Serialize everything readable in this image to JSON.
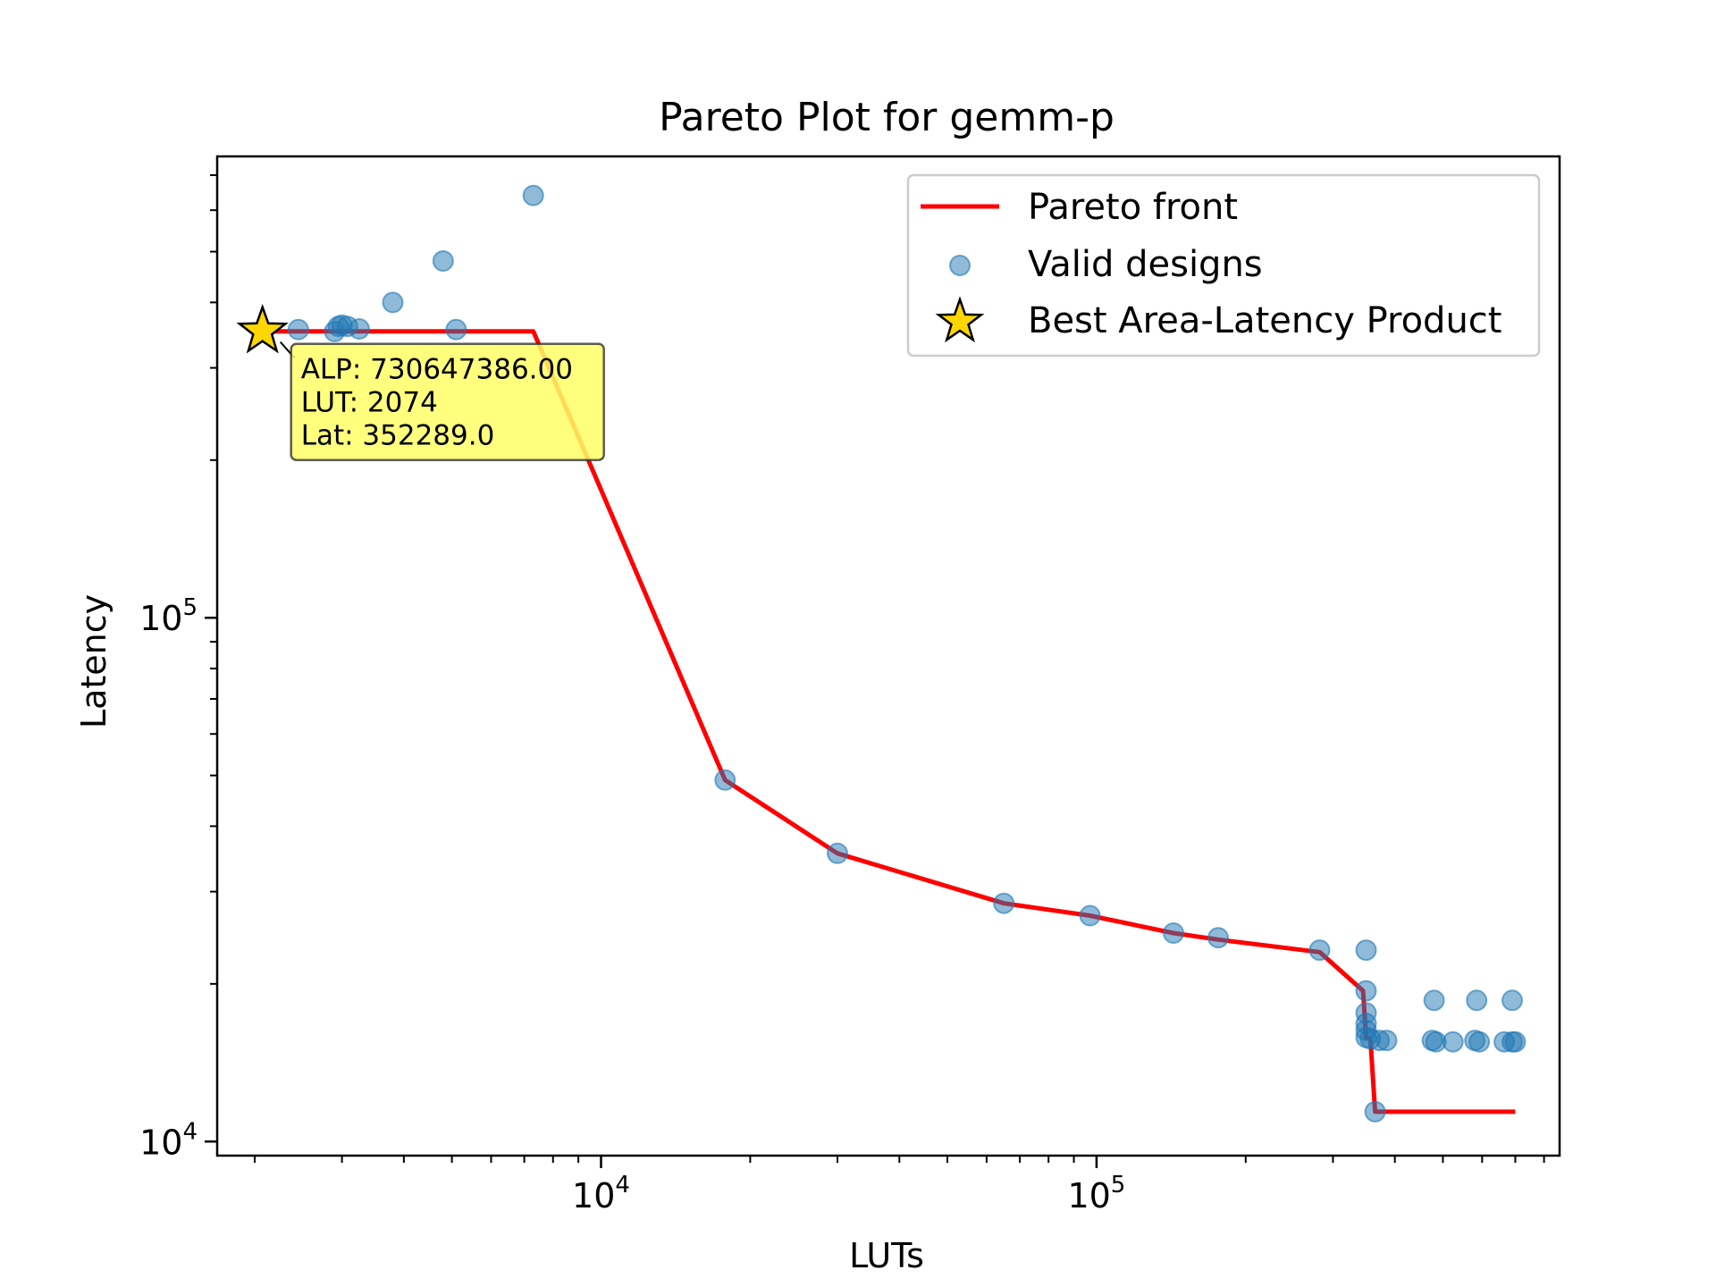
{
  "chart_data": {
    "type": "scatter",
    "title": "Pareto Plot for gemm-p",
    "xlabel": "LUTs",
    "ylabel": "Latency",
    "xscale": "log",
    "yscale": "log",
    "xlim": [
      1680,
      860000
    ],
    "ylim": [
      9400,
      760000
    ],
    "x_ticks": [
      {
        "base": "10",
        "exp": "4",
        "value": 10000
      },
      {
        "base": "10",
        "exp": "5",
        "value": 100000
      }
    ],
    "y_ticks": [
      {
        "base": "10",
        "exp": "4",
        "value": 10000
      },
      {
        "base": "10",
        "exp": "5",
        "value": 100000
      }
    ],
    "grid": false,
    "legend": {
      "placement": "top-right",
      "entries": [
        {
          "label": "Pareto front",
          "kind": "line",
          "color": "#ff0000"
        },
        {
          "label": "Valid designs",
          "kind": "marker",
          "color": "#1f77b4"
        },
        {
          "label": "Best Area-Latency Product",
          "kind": "star",
          "color": "#ffd700"
        }
      ]
    },
    "series": [
      {
        "name": "Valid designs",
        "kind": "scatter",
        "color": "#1f77b4",
        "points": [
          {
            "x": 2074,
            "y": 352289
          },
          {
            "x": 2450,
            "y": 355000
          },
          {
            "x": 2900,
            "y": 352000
          },
          {
            "x": 2950,
            "y": 360000
          },
          {
            "x": 3000,
            "y": 362000
          },
          {
            "x": 3080,
            "y": 360000
          },
          {
            "x": 3250,
            "y": 356000
          },
          {
            "x": 3800,
            "y": 400000
          },
          {
            "x": 4800,
            "y": 480000
          },
          {
            "x": 5100,
            "y": 355000
          },
          {
            "x": 7300,
            "y": 640000
          },
          {
            "x": 17800,
            "y": 49000
          },
          {
            "x": 30000,
            "y": 35500
          },
          {
            "x": 65000,
            "y": 28500
          },
          {
            "x": 97000,
            "y": 27000
          },
          {
            "x": 143000,
            "y": 25000
          },
          {
            "x": 176000,
            "y": 24500
          },
          {
            "x": 282000,
            "y": 23200
          },
          {
            "x": 350000,
            "y": 23200
          },
          {
            "x": 350000,
            "y": 19400
          },
          {
            "x": 350000,
            "y": 17600
          },
          {
            "x": 350000,
            "y": 16800
          },
          {
            "x": 350000,
            "y": 16300
          },
          {
            "x": 350000,
            "y": 15800
          },
          {
            "x": 357000,
            "y": 15700
          },
          {
            "x": 365000,
            "y": 11400
          },
          {
            "x": 372000,
            "y": 15600
          },
          {
            "x": 385000,
            "y": 15600
          },
          {
            "x": 476000,
            "y": 15600
          },
          {
            "x": 480000,
            "y": 18600
          },
          {
            "x": 484000,
            "y": 15500
          },
          {
            "x": 524000,
            "y": 15500
          },
          {
            "x": 580000,
            "y": 15600
          },
          {
            "x": 585000,
            "y": 18600
          },
          {
            "x": 592000,
            "y": 15500
          },
          {
            "x": 665000,
            "y": 15500
          },
          {
            "x": 690000,
            "y": 15500
          },
          {
            "x": 690000,
            "y": 18600
          },
          {
            "x": 700000,
            "y": 15500
          }
        ]
      },
      {
        "name": "Pareto front",
        "kind": "line",
        "color": "#ff0000",
        "points": [
          {
            "x": 2074,
            "y": 352289
          },
          {
            "x": 7300,
            "y": 352289
          },
          {
            "x": 17800,
            "y": 49000
          },
          {
            "x": 30000,
            "y": 35500
          },
          {
            "x": 65000,
            "y": 28500
          },
          {
            "x": 97000,
            "y": 27000
          },
          {
            "x": 143000,
            "y": 25000
          },
          {
            "x": 176000,
            "y": 24300
          },
          {
            "x": 282000,
            "y": 23000
          },
          {
            "x": 345000,
            "y": 19400
          },
          {
            "x": 350000,
            "y": 15800
          },
          {
            "x": 357000,
            "y": 15700
          },
          {
            "x": 365000,
            "y": 11400
          },
          {
            "x": 700000,
            "y": 11400
          }
        ]
      }
    ],
    "best": {
      "x": 2074,
      "y": 352289,
      "marker": "star",
      "color": "#ffd700",
      "annotation": [
        "ALP: 730647386.00",
        "LUT: 2074",
        "Lat: 352289.0"
      ],
      "annotation_bg": "#ffff66"
    }
  }
}
